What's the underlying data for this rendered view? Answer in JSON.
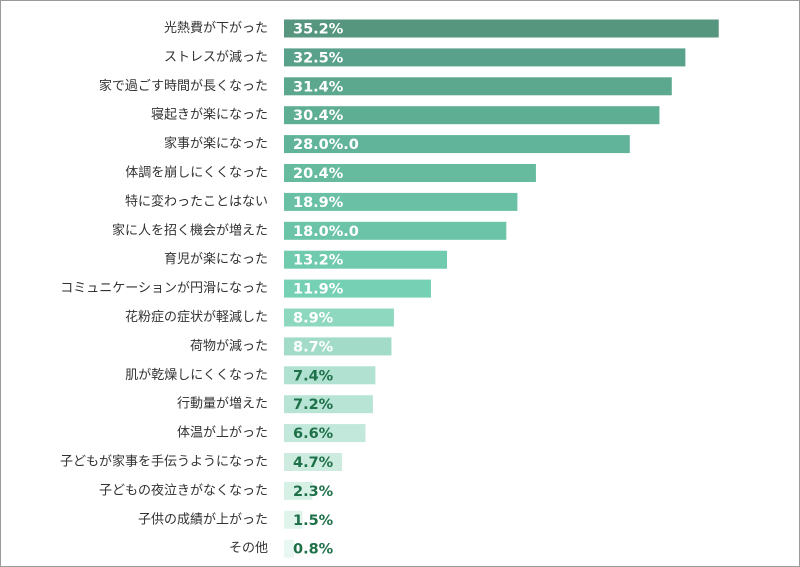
{
  "chart_data": {
    "type": "bar",
    "orientation": "horizontal",
    "grid": false,
    "xlim": [
      0,
      40
    ],
    "categories": [
      "光熱費が下がった",
      "ストレスが減った",
      "家で過ごす時間が長くなった",
      "寝起きが楽になった",
      "家事が楽になった",
      "体調を崩しにくくなった",
      "特に変わったことはない",
      "家に人を招く機会が増えた",
      "育児が楽になった",
      "コミュニケーションが円滑になった",
      "花粉症の症状が軽減した",
      "荷物が減った",
      "肌が乾燥しにくくなった",
      "行動量が増えた",
      "体温が上がった",
      "子どもが家事を手伝うようになった",
      "子どもの夜泣きがなくなった",
      "子供の成績が上がった",
      "その他"
    ],
    "values": [
      35.2,
      32.5,
      31.4,
      30.4,
      28.0,
      20.4,
      18.9,
      18.0,
      13.2,
      11.9,
      8.9,
      8.7,
      7.4,
      7.2,
      6.6,
      4.7,
      2.3,
      1.5,
      0.8
    ],
    "value_labels": [
      "35.2%",
      "32.5%",
      "31.4%",
      "30.4%",
      "28.0%.0",
      "20.4%",
      "18.9%",
      "18.0%.0",
      "13.2%",
      "11.9%",
      "8.9%",
      "8.7%",
      "7.4%",
      "7.2%",
      "6.6%",
      "4.7%",
      "2.3%",
      "1.5%",
      "0.8%"
    ],
    "bar_colors": [
      "#56967f",
      "#59a18a",
      "#5ca88f",
      "#5eae94",
      "#61b49a",
      "#66bb9f",
      "#69c0a4",
      "#6cc4a8",
      "#70cbae",
      "#76d0b3",
      "#8fd8c0",
      "#a2dcc9",
      "#b0e1d1",
      "#b8e4d5",
      "#c2e8db",
      "#cdecdf",
      "#d7f0e6",
      "#e0f4ec",
      "#e8f7f1"
    ],
    "label_colors": [
      "#ffffff",
      "#ffffff",
      "#ffffff",
      "#ffffff",
      "#ffffff",
      "#ffffff",
      "#ffffff",
      "#ffffff",
      "#ffffff",
      "#ffffff",
      "#ffffff",
      "#ffffff",
      "#1e7049",
      "#1e7049",
      "#1e7049",
      "#1e7049",
      "#1e7049",
      "#1e7049",
      "#1e7049"
    ]
  }
}
